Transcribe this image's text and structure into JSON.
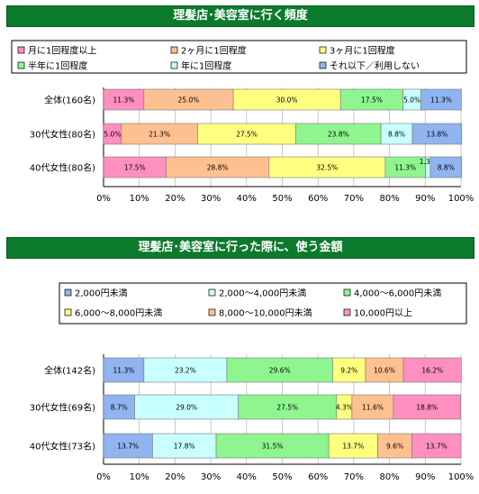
{
  "chart_data": [
    {
      "type": "bar",
      "orientation": "horizontal-stacked-100",
      "title": "理髪店･美容室に行く頻度",
      "categories": [
        "全体(160名)",
        "30代女性(80名)",
        "40代女性(80名)"
      ],
      "series": [
        {
          "name": "月に1回程度以上",
          "color": "#ff8fc0",
          "values": [
            11.3,
            5.0,
            17.5
          ]
        },
        {
          "name": "2ヶ月に1回程度",
          "color": "#ffc090",
          "values": [
            25.0,
            21.3,
            28.8
          ]
        },
        {
          "name": "3ヶ月に1回程度",
          "color": "#ffff80",
          "values": [
            30.0,
            27.5,
            32.5
          ]
        },
        {
          "name": "半年に1回程度",
          "color": "#8ff58f",
          "values": [
            17.5,
            23.8,
            11.3
          ]
        },
        {
          "name": "年に1回程度",
          "color": "#c8ffff",
          "values": [
            5.0,
            8.8,
            1.3
          ]
        },
        {
          "name": "それ以下／利用しない",
          "color": "#8fb4f0",
          "values": [
            11.3,
            13.8,
            8.8
          ]
        }
      ],
      "data_labels": [
        [
          "11.3%",
          "25.0%",
          "30.0%",
          "17.5%",
          "5.0%",
          "11.3%"
        ],
        [
          "5.0%",
          "21.3%",
          "27.5%",
          "23.8%",
          "8.8%",
          "13.8%"
        ],
        [
          "17.5%",
          "28.8%",
          "32.5%",
          "11.3%",
          "1.3%",
          "8.8%"
        ]
      ],
      "xlim": [
        0,
        100
      ],
      "ticks": [
        "0%",
        "10%",
        "20%",
        "30%",
        "40%",
        "50%",
        "60%",
        "70%",
        "80%",
        "90%",
        "100%"
      ],
      "legend": "top"
    },
    {
      "type": "bar",
      "orientation": "horizontal-stacked-100",
      "title": "理髪店･美容室に行った際に、使う金額",
      "categories": [
        "全体(142名)",
        "30代女性(69名)",
        "40代女性(73名)"
      ],
      "series": [
        {
          "name": "2,000円未満",
          "color": "#8fb4f0",
          "values": [
            11.3,
            8.7,
            13.7
          ]
        },
        {
          "name": "2,000～4,000円未満",
          "color": "#c8ffff",
          "values": [
            23.2,
            29.0,
            17.8
          ]
        },
        {
          "name": "4,000～6,000円未満",
          "color": "#8ff58f",
          "values": [
            29.6,
            27.5,
            31.5
          ]
        },
        {
          "name": "6,000～8,000円未満",
          "color": "#ffff80",
          "values": [
            9.2,
            4.3,
            13.7
          ]
        },
        {
          "name": "8,000～10,000円未満",
          "color": "#ffc090",
          "values": [
            10.6,
            11.6,
            9.6
          ]
        },
        {
          "name": "10,000円以上",
          "color": "#ff8fc0",
          "values": [
            16.2,
            18.8,
            13.7
          ]
        }
      ],
      "data_labels": [
        [
          "11.3%",
          "23.2%",
          "29.6%",
          "9.2%",
          "10.6%",
          "16.2%"
        ],
        [
          "8.7%",
          "29.0%",
          "27.5%",
          "4.3%",
          "11.6%",
          "18.8%"
        ],
        [
          "13.7%",
          "17.8%",
          "31.5%",
          "13.7%",
          "9.6%",
          "13.7%"
        ]
      ],
      "xlim": [
        0,
        100
      ],
      "ticks": [
        "0%",
        "10%",
        "20%",
        "30%",
        "40%",
        "50%",
        "60%",
        "70%",
        "80%",
        "90%",
        "100%"
      ],
      "legend": "top"
    }
  ]
}
